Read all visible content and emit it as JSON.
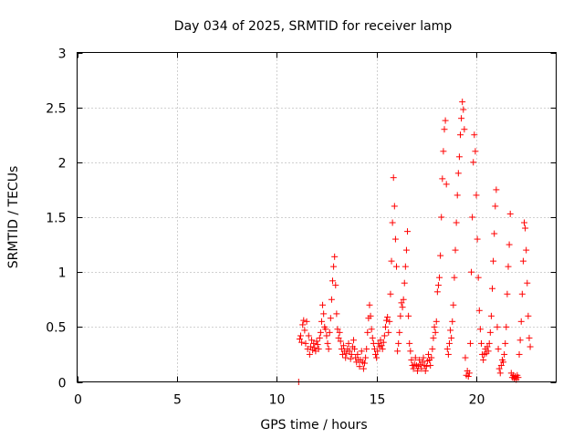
{
  "chart_data": {
    "type": "scatter",
    "title": "Day 034 of 2025, SRMTID for receiver lamp",
    "xlabel": "GPS time / hours",
    "ylabel": "SRMTID / TECUs",
    "xlim": [
      0,
      24
    ],
    "ylim": [
      0,
      3
    ],
    "xticks": [
      0,
      5,
      10,
      15,
      20
    ],
    "xtick_labels": [
      "0",
      "5",
      "10",
      "15",
      "20"
    ],
    "yticks": [
      0,
      0.5,
      1,
      1.5,
      2,
      2.5,
      3
    ],
    "ytick_labels": [
      "0",
      "0.5",
      "1",
      "1.5",
      "2",
      "2.5",
      "3"
    ],
    "grid": true,
    "marker": "+",
    "color": "#ff0000",
    "series": [
      {
        "name": "SRMTID",
        "points": [
          [
            11.1,
            0.0
          ],
          [
            11.15,
            0.39
          ],
          [
            11.2,
            0.42
          ],
          [
            11.25,
            0.36
          ],
          [
            11.3,
            0.52
          ],
          [
            11.35,
            0.56
          ],
          [
            11.4,
            0.47
          ],
          [
            11.45,
            0.35
          ],
          [
            11.5,
            0.55
          ],
          [
            11.55,
            0.3
          ],
          [
            11.6,
            0.42
          ],
          [
            11.65,
            0.25
          ],
          [
            11.7,
            0.32
          ],
          [
            11.75,
            0.38
          ],
          [
            11.8,
            0.29
          ],
          [
            11.85,
            0.35
          ],
          [
            11.9,
            0.31
          ],
          [
            11.95,
            0.28
          ],
          [
            12.0,
            0.37
          ],
          [
            12.05,
            0.34
          ],
          [
            12.1,
            0.3
          ],
          [
            12.15,
            0.4
          ],
          [
            12.2,
            0.45
          ],
          [
            12.25,
            0.55
          ],
          [
            12.3,
            0.7
          ],
          [
            12.35,
            0.62
          ],
          [
            12.4,
            0.5
          ],
          [
            12.45,
            0.48
          ],
          [
            12.5,
            0.42
          ],
          [
            12.55,
            0.35
          ],
          [
            12.6,
            0.3
          ],
          [
            12.65,
            0.45
          ],
          [
            12.7,
            0.58
          ],
          [
            12.75,
            0.75
          ],
          [
            12.8,
            0.92
          ],
          [
            12.85,
            1.05
          ],
          [
            12.9,
            1.14
          ],
          [
            12.95,
            0.88
          ],
          [
            13.0,
            0.62
          ],
          [
            13.05,
            0.48
          ],
          [
            13.1,
            0.4
          ],
          [
            13.15,
            0.45
          ],
          [
            13.2,
            0.37
          ],
          [
            13.25,
            0.3
          ],
          [
            13.3,
            0.25
          ],
          [
            13.35,
            0.33
          ],
          [
            13.4,
            0.28
          ],
          [
            13.45,
            0.22
          ],
          [
            13.5,
            0.26
          ],
          [
            13.55,
            0.3
          ],
          [
            13.6,
            0.35
          ],
          [
            13.65,
            0.28
          ],
          [
            13.7,
            0.21
          ],
          [
            13.75,
            0.25
          ],
          [
            13.8,
            0.32
          ],
          [
            13.85,
            0.38
          ],
          [
            13.9,
            0.3
          ],
          [
            13.95,
            0.22
          ],
          [
            14.0,
            0.18
          ],
          [
            14.05,
            0.25
          ],
          [
            14.1,
            0.2
          ],
          [
            14.15,
            0.14
          ],
          [
            14.2,
            0.2
          ],
          [
            14.25,
            0.28
          ],
          [
            14.3,
            0.18
          ],
          [
            14.35,
            0.12
          ],
          [
            14.4,
            0.17
          ],
          [
            14.45,
            0.22
          ],
          [
            14.5,
            0.3
          ],
          [
            14.55,
            0.45
          ],
          [
            14.6,
            0.58
          ],
          [
            14.65,
            0.7
          ],
          [
            14.7,
            0.6
          ],
          [
            14.75,
            0.48
          ],
          [
            14.8,
            0.4
          ],
          [
            14.85,
            0.35
          ],
          [
            14.9,
            0.3
          ],
          [
            14.95,
            0.25
          ],
          [
            15.0,
            0.22
          ],
          [
            15.05,
            0.28
          ],
          [
            15.1,
            0.35
          ],
          [
            15.15,
            0.32
          ],
          [
            15.2,
            0.38
          ],
          [
            15.25,
            0.33
          ],
          [
            15.3,
            0.3
          ],
          [
            15.35,
            0.36
          ],
          [
            15.4,
            0.42
          ],
          [
            15.45,
            0.5
          ],
          [
            15.5,
            0.56
          ],
          [
            15.55,
            0.59
          ],
          [
            15.6,
            0.45
          ],
          [
            15.65,
            0.55
          ],
          [
            15.7,
            0.8
          ],
          [
            15.75,
            1.1
          ],
          [
            15.8,
            1.45
          ],
          [
            15.85,
            1.86
          ],
          [
            15.9,
            1.6
          ],
          [
            15.95,
            1.3
          ],
          [
            16.0,
            1.05
          ],
          [
            16.05,
            0.28
          ],
          [
            16.1,
            0.35
          ],
          [
            16.15,
            0.45
          ],
          [
            16.2,
            0.6
          ],
          [
            16.25,
            0.72
          ],
          [
            16.3,
            0.68
          ],
          [
            16.35,
            0.75
          ],
          [
            16.4,
            0.9
          ],
          [
            16.45,
            1.05
          ],
          [
            16.5,
            1.2
          ],
          [
            16.55,
            1.37
          ],
          [
            16.6,
            0.6
          ],
          [
            16.65,
            0.35
          ],
          [
            16.7,
            0.28
          ],
          [
            16.75,
            0.2
          ],
          [
            16.8,
            0.15
          ],
          [
            16.85,
            0.12
          ],
          [
            16.9,
            0.16
          ],
          [
            16.95,
            0.22
          ],
          [
            17.0,
            0.15
          ],
          [
            17.05,
            0.1
          ],
          [
            17.1,
            0.14
          ],
          [
            17.15,
            0.2
          ],
          [
            17.2,
            0.16
          ],
          [
            17.25,
            0.12
          ],
          [
            17.3,
            0.18
          ],
          [
            17.35,
            0.22
          ],
          [
            17.4,
            0.15
          ],
          [
            17.45,
            0.1
          ],
          [
            17.5,
            0.14
          ],
          [
            17.55,
            0.19
          ],
          [
            17.6,
            0.25
          ],
          [
            17.65,
            0.2
          ],
          [
            17.7,
            0.15
          ],
          [
            17.75,
            0.22
          ],
          [
            17.8,
            0.3
          ],
          [
            17.85,
            0.4
          ],
          [
            17.9,
            0.5
          ],
          [
            17.95,
            0.45
          ],
          [
            18.0,
            0.55
          ],
          [
            18.05,
            0.82
          ],
          [
            18.1,
            0.88
          ],
          [
            18.15,
            0.95
          ],
          [
            18.2,
            1.15
          ],
          [
            18.25,
            1.5
          ],
          [
            18.3,
            1.85
          ],
          [
            18.35,
            2.1
          ],
          [
            18.4,
            2.3
          ],
          [
            18.45,
            2.38
          ],
          [
            18.5,
            1.8
          ],
          [
            18.55,
            0.3
          ],
          [
            18.6,
            0.25
          ],
          [
            18.65,
            0.35
          ],
          [
            18.7,
            0.47
          ],
          [
            18.75,
            0.4
          ],
          [
            18.8,
            0.55
          ],
          [
            18.85,
            0.7
          ],
          [
            18.9,
            0.95
          ],
          [
            18.95,
            1.2
          ],
          [
            19.0,
            1.45
          ],
          [
            19.05,
            1.7
          ],
          [
            19.1,
            1.9
          ],
          [
            19.15,
            2.05
          ],
          [
            19.2,
            2.25
          ],
          [
            19.25,
            2.4
          ],
          [
            19.3,
            2.55
          ],
          [
            19.35,
            2.48
          ],
          [
            19.4,
            2.3
          ],
          [
            19.45,
            0.22
          ],
          [
            19.5,
            0.06
          ],
          [
            19.55,
            0.1
          ],
          [
            19.6,
            0.05
          ],
          [
            19.65,
            0.08
          ],
          [
            19.7,
            0.35
          ],
          [
            19.75,
            1.0
          ],
          [
            19.8,
            1.5
          ],
          [
            19.85,
            2.0
          ],
          [
            19.9,
            2.25
          ],
          [
            19.95,
            2.1
          ],
          [
            20.0,
            1.7
          ],
          [
            20.05,
            1.3
          ],
          [
            20.1,
            0.95
          ],
          [
            20.15,
            0.65
          ],
          [
            20.2,
            0.48
          ],
          [
            20.25,
            0.35
          ],
          [
            20.3,
            0.25
          ],
          [
            20.35,
            0.2
          ],
          [
            20.4,
            0.25
          ],
          [
            20.45,
            0.3
          ],
          [
            20.5,
            0.26
          ],
          [
            20.55,
            0.32
          ],
          [
            20.6,
            0.28
          ],
          [
            20.65,
            0.35
          ],
          [
            20.7,
            0.45
          ],
          [
            20.75,
            0.6
          ],
          [
            20.8,
            0.85
          ],
          [
            20.85,
            1.1
          ],
          [
            20.9,
            1.35
          ],
          [
            20.95,
            1.6
          ],
          [
            21.0,
            1.75
          ],
          [
            21.05,
            0.5
          ],
          [
            21.1,
            0.3
          ],
          [
            21.15,
            0.12
          ],
          [
            21.2,
            0.08
          ],
          [
            21.25,
            0.15
          ],
          [
            21.3,
            0.2
          ],
          [
            21.35,
            0.18
          ],
          [
            21.4,
            0.25
          ],
          [
            21.45,
            0.35
          ],
          [
            21.5,
            0.5
          ],
          [
            21.55,
            0.8
          ],
          [
            21.6,
            1.05
          ],
          [
            21.65,
            1.25
          ],
          [
            21.7,
            1.53
          ],
          [
            21.75,
            0.08
          ],
          [
            21.8,
            0.04
          ],
          [
            21.85,
            0.06
          ],
          [
            21.9,
            0.03
          ],
          [
            21.95,
            0.05
          ],
          [
            22.0,
            0.02
          ],
          [
            22.05,
            0.06
          ],
          [
            22.1,
            0.04
          ],
          [
            22.15,
            0.25
          ],
          [
            22.2,
            0.38
          ],
          [
            22.25,
            0.55
          ],
          [
            22.3,
            0.8
          ],
          [
            22.35,
            1.1
          ],
          [
            22.4,
            1.45
          ],
          [
            22.45,
            1.4
          ],
          [
            22.5,
            1.2
          ],
          [
            22.55,
            0.9
          ],
          [
            22.6,
            0.6
          ],
          [
            22.65,
            0.4
          ],
          [
            22.7,
            0.32
          ]
        ]
      }
    ]
  }
}
